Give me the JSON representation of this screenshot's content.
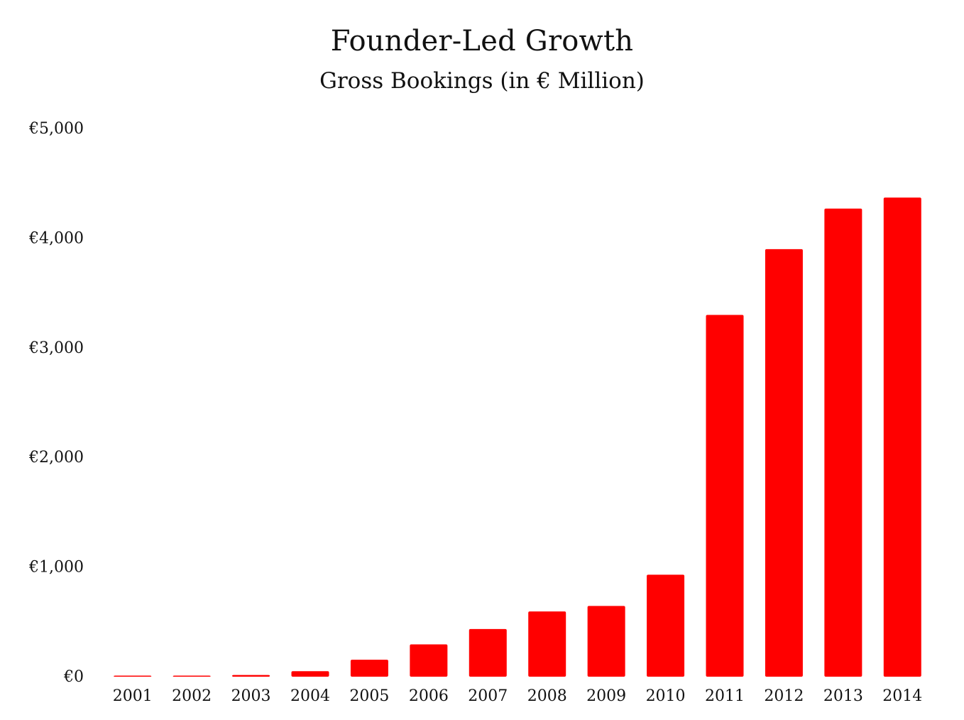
{
  "chart_data": {
    "type": "bar",
    "title": "Founder-Led Growth",
    "subtitle": "Gross Bookings (in € Million)",
    "xlabel": "",
    "ylabel": "",
    "categories": [
      "2001",
      "2002",
      "2003",
      "2004",
      "2005",
      "2006",
      "2007",
      "2008",
      "2009",
      "2010",
      "2011",
      "2012",
      "2013",
      "2014"
    ],
    "values": [
      5,
      8,
      15,
      50,
      155,
      295,
      435,
      595,
      645,
      930,
      3300,
      3900,
      4270,
      4370
    ],
    "ylim": [
      0,
      5000
    ],
    "yticks": [
      0,
      1000,
      2000,
      3000,
      4000,
      5000
    ],
    "ytick_labels": [
      "€0",
      "€1,000",
      "€2,000",
      "€3,000",
      "€4,000",
      "€5,000"
    ],
    "grid": false,
    "legend": "none",
    "bar_color": "#ff0000"
  }
}
